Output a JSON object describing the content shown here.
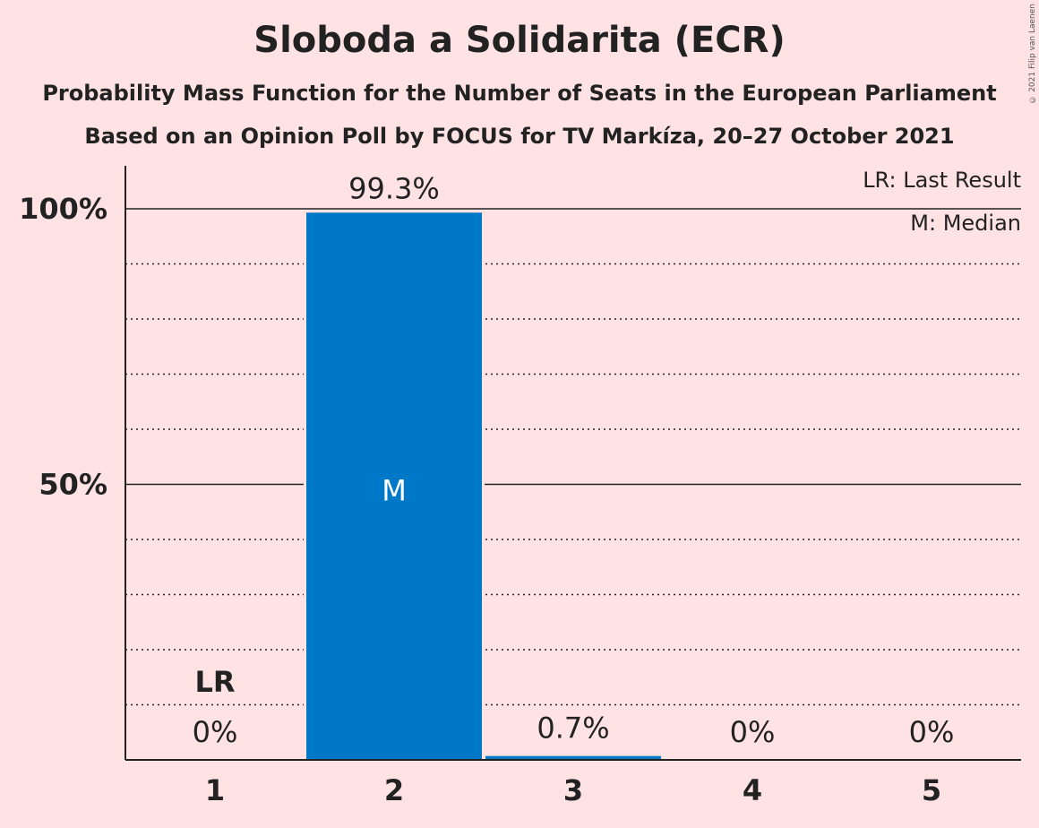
{
  "title": "Sloboda a Solidarita (ECR)",
  "subtitle1": "Probability Mass Function for the Number of Seats in the European Parliament",
  "subtitle2": "Based on an Opinion Poll by FOCUS for TV Markíza, 20–27 October 2021",
  "copyright": "© 2021 Filip van Laenen",
  "colors": {
    "background": "#ffe2e4",
    "bar": "#0078c8",
    "text": "#222222"
  },
  "chart_data": {
    "type": "bar",
    "categories": [
      "1",
      "2",
      "3",
      "4",
      "5"
    ],
    "values": [
      0,
      99.3,
      0.7,
      0,
      0
    ],
    "value_labels": [
      "0%",
      "99.3%",
      "0.7%",
      "0%",
      "0%"
    ],
    "ylim": [
      0,
      100
    ],
    "yticks": [
      {
        "value": 50,
        "label": "50%"
      },
      {
        "value": 100,
        "label": "100%"
      }
    ],
    "minor_grid": [
      10,
      20,
      30,
      40,
      60,
      70,
      80,
      90
    ],
    "last_result": {
      "category": "1",
      "label": "LR"
    },
    "median": {
      "category": "2",
      "label": "M"
    },
    "legend": [
      "LR: Last Result",
      "M: Median"
    ]
  }
}
